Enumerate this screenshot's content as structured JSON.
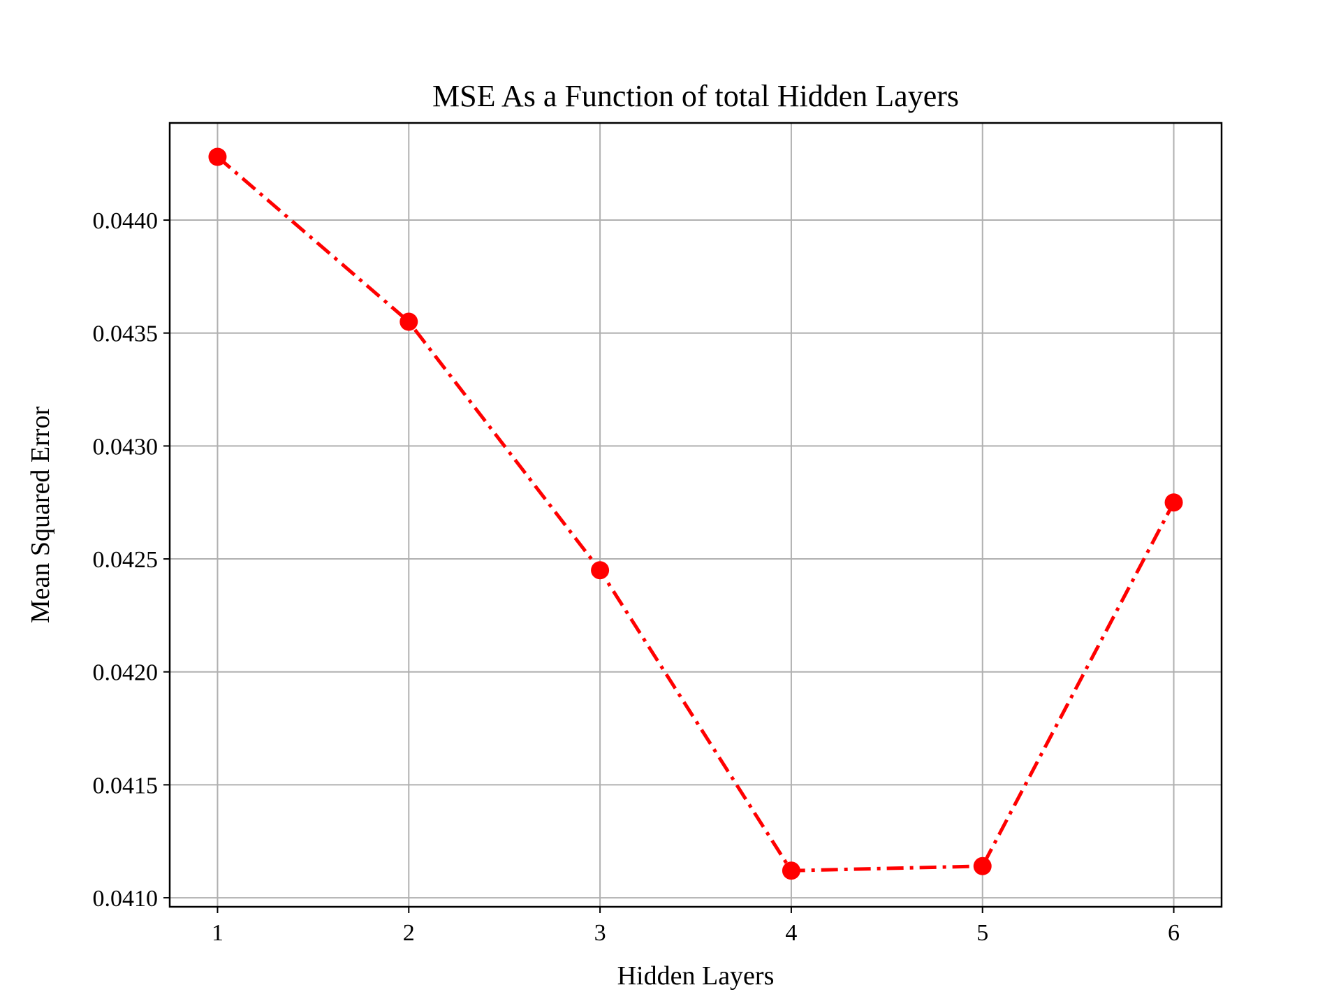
{
  "chart_data": {
    "type": "line",
    "title": "MSE As a Function of total Hidden Layers",
    "xlabel": "Hidden Layers",
    "ylabel": "Mean Squared Error",
    "x": [
      1,
      2,
      3,
      4,
      5,
      6
    ],
    "series": [
      {
        "values": [
          0.04428,
          0.04355,
          0.04245,
          0.04112,
          0.04114,
          0.04275
        ],
        "color": "#ff0000",
        "line_style": "dash-dot",
        "marker": "circle"
      }
    ],
    "xticks": [
      "1",
      "2",
      "3",
      "4",
      "5",
      "6"
    ],
    "yticks": [
      "0.0410",
      "0.0415",
      "0.0420",
      "0.0425",
      "0.0430",
      "0.0435",
      "0.0440"
    ],
    "xlim": [
      0.75,
      6.25
    ],
    "ylim": [
      0.04096,
      0.04443
    ],
    "grid": true,
    "legend": "none",
    "colors": {
      "grid": "#b0b0b0",
      "axes": "#000000",
      "line": "#ff0000"
    }
  }
}
